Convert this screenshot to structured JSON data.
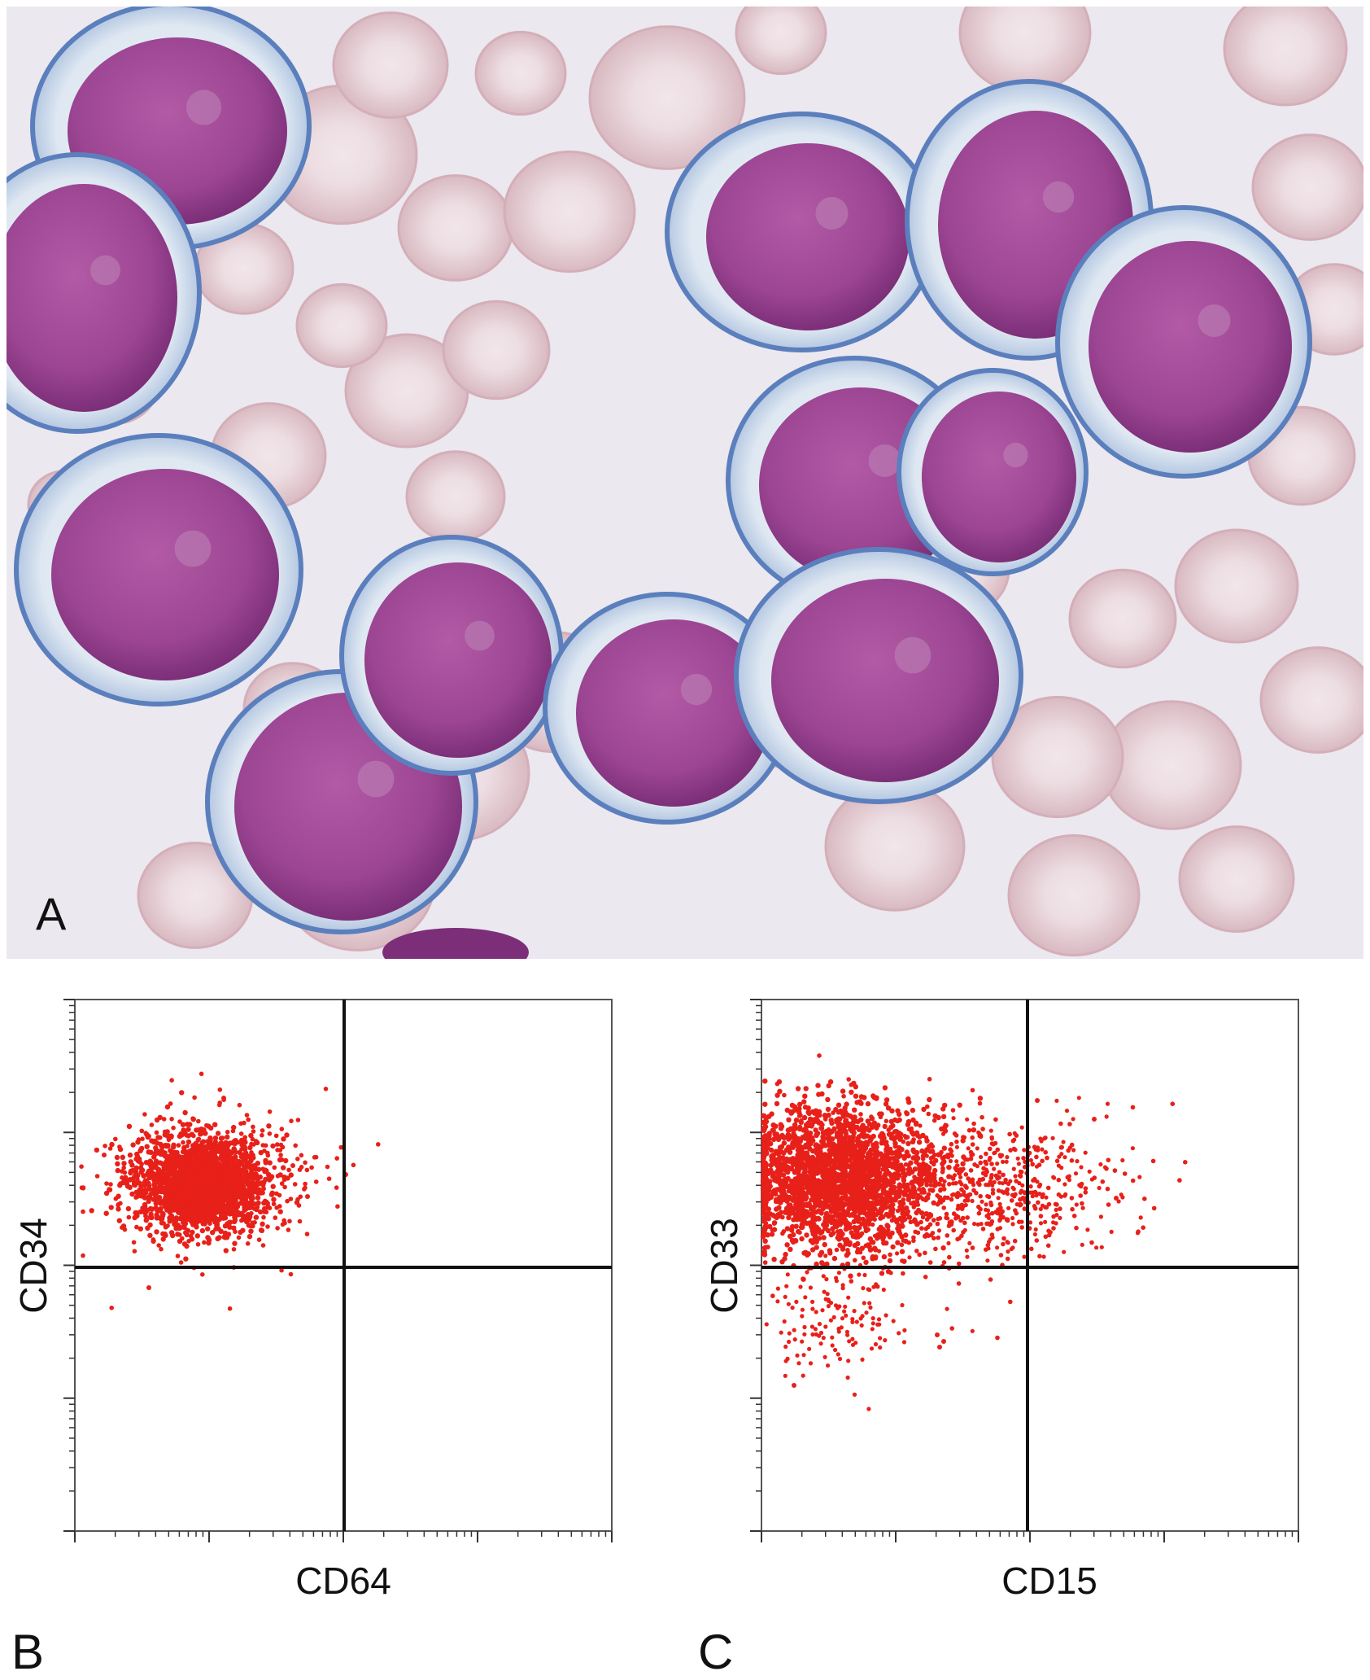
{
  "figure": {
    "panels": {
      "a": {
        "letter": "A",
        "content": "micrograph"
      },
      "b": {
        "letter": "B",
        "x_label": "CD64",
        "y_label": "CD34"
      },
      "c": {
        "letter": "C",
        "x_label": "CD15",
        "y_label": "CD33"
      }
    },
    "colors": {
      "event_dot": "#e8201a",
      "quadrant_line": "#111111",
      "smear_background": "#e9e6ee",
      "blast_nucleus": "#9b3f8f",
      "blast_cytoplasm": "#d9e6f1",
      "red_cell": "#e6c9cf"
    }
  }
}
